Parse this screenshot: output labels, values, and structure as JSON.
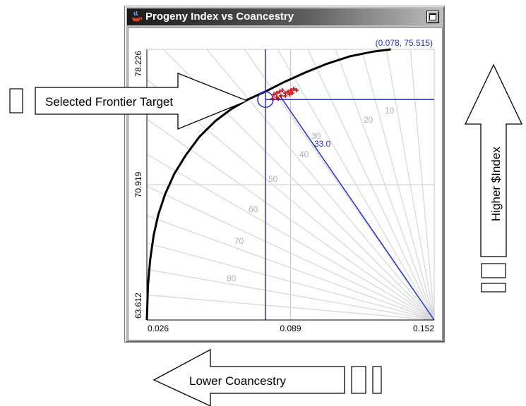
{
  "window": {
    "title": "Progeny Index vs Coancestry"
  },
  "readout": "(0.078, 75.515)",
  "selected_angle_label": "33.0",
  "annotations": {
    "selected_target": "Selected Frontier Target",
    "higher_index": "Higher $Index",
    "lower_coancestry": "Lower Coancestry"
  },
  "chart_data": {
    "type": "line",
    "title": "Progeny Index vs Coancestry",
    "xlabel": "",
    "ylabel": "",
    "xlim": [
      0.026,
      0.152
    ],
    "ylim": [
      63.612,
      78.226
    ],
    "x_ticks": [
      "0.026",
      "0.089",
      "0.152"
    ],
    "y_ticks": [
      "63.612",
      "70.919",
      "78.226"
    ],
    "grid": true,
    "frontier": [
      [
        0.026,
        63.612
      ],
      [
        0.0265,
        65.5
      ],
      [
        0.0275,
        66.9
      ],
      [
        0.029,
        68.2
      ],
      [
        0.031,
        69.3
      ],
      [
        0.034,
        70.4
      ],
      [
        0.038,
        71.5
      ],
      [
        0.043,
        72.5
      ],
      [
        0.049,
        73.5
      ],
      [
        0.056,
        74.35
      ],
      [
        0.063,
        75.0
      ],
      [
        0.07,
        75.5
      ],
      [
        0.078,
        75.95
      ],
      [
        0.086,
        76.45
      ],
      [
        0.095,
        76.95
      ],
      [
        0.105,
        77.45
      ],
      [
        0.115,
        77.85
      ],
      [
        0.125,
        78.1
      ],
      [
        0.133,
        78.226
      ]
    ],
    "angle_labels": [
      "10",
      "20",
      "30",
      "40",
      "50",
      "60",
      "70",
      "80"
    ],
    "selected_point": [
      0.078,
      75.515
    ],
    "selected_angle": 33.0
  }
}
